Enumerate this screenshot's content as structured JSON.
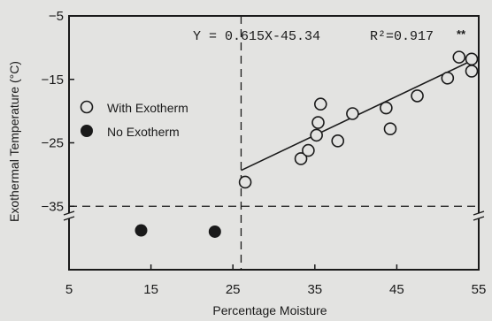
{
  "chart_data": {
    "type": "scatter",
    "regression": {
      "equation": "Y = 0.615X-45.34",
      "r2_label": "R²=0.917",
      "significance": "**",
      "slope": 0.615,
      "intercept": -45.34,
      "x_range": [
        26,
        55
      ]
    },
    "xlabel": "Percentage Moisture",
    "ylabel": "Exothermal Temperature (°C)",
    "xlim": [
      5,
      55
    ],
    "ylim": [
      -45,
      -5
    ],
    "x_ticks": [
      5,
      15,
      25,
      35,
      45,
      55
    ],
    "x_tick_labels": [
      "5",
      "15",
      "25",
      "35",
      "45",
      "55"
    ],
    "y_ticks": [
      -5,
      -15,
      -25,
      -35
    ],
    "y_tick_labels": [
      "−5",
      "−15",
      "−25",
      "−35"
    ],
    "y_axis_break_at": -36.5,
    "reference_lines": {
      "x": 26,
      "y": -35
    },
    "grid": false,
    "legend_position": "upper-left",
    "series": [
      {
        "name": "With Exotherm",
        "marker": "open-circle",
        "points": [
          [
            26.5,
            -31.2
          ],
          [
            33.3,
            -27.5
          ],
          [
            34.2,
            -26.2
          ],
          [
            35.2,
            -23.8
          ],
          [
            35.4,
            -21.8
          ],
          [
            35.7,
            -18.9
          ],
          [
            37.8,
            -24.7
          ],
          [
            39.6,
            -20.4
          ],
          [
            43.7,
            -19.5
          ],
          [
            44.2,
            -22.8
          ],
          [
            47.5,
            -17.6
          ],
          [
            51.2,
            -14.8
          ],
          [
            52.6,
            -11.5
          ],
          [
            55.5,
            -11.8
          ],
          [
            56.3,
            -13.7
          ]
        ]
      },
      {
        "name": "No Exotherm",
        "marker": "filled-circle",
        "points": [
          [
            13.8,
            -38.8
          ],
          [
            22.8,
            -39.0
          ]
        ]
      }
    ]
  },
  "colors": {
    "background": "#e3e3e1",
    "ink": "#1a1a1a"
  }
}
